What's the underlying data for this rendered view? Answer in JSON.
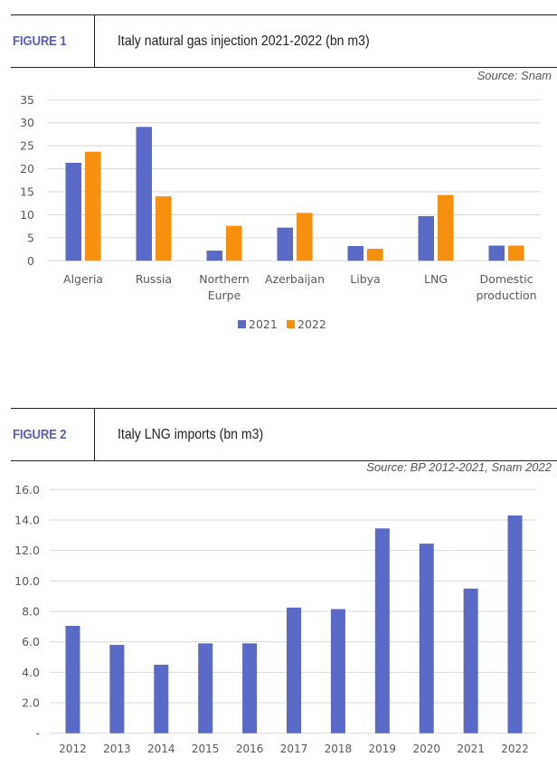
{
  "figures": [
    {
      "label": "FIGURE 1",
      "title": "Italy natural gas injection 2021-2022 (bn m3)",
      "source": "Source: Snam"
    },
    {
      "label": "FIGURE 2",
      "title": "Italy LNG imports (bn m3)",
      "source": "Source: BP 2012-2021, Snam 2022"
    }
  ],
  "chart_data": [
    {
      "type": "bar",
      "title": "Italy natural gas injection 2021-2022 (bn m3)",
      "xlabel": "",
      "ylabel": "",
      "categories": [
        "Algeria",
        "Russia",
        "Northern Eurpe",
        "Azerbaijan",
        "Libya",
        "LNG",
        "Domestic production"
      ],
      "category_lines": [
        [
          "Algeria"
        ],
        [
          "Russia"
        ],
        [
          "Northern",
          "Eurpe"
        ],
        [
          "Azerbaijan"
        ],
        [
          "Libya"
        ],
        [
          "LNG"
        ],
        [
          "Domestic",
          "production"
        ]
      ],
      "series": [
        {
          "name": "2021",
          "color": "#5B6AC6",
          "values": [
            21.3,
            29.1,
            2.2,
            7.2,
            3.2,
            9.7,
            3.3
          ]
        },
        {
          "name": "2022",
          "color": "#F7900E",
          "values": [
            23.7,
            14.0,
            7.6,
            10.4,
            2.6,
            14.3,
            3.3
          ]
        }
      ],
      "ylim": [
        0,
        35
      ],
      "yticks": [
        0,
        5,
        10,
        15,
        20,
        25,
        30,
        35
      ],
      "ytick_labels": [
        "0",
        "5",
        "10",
        "15",
        "20",
        "25",
        "30",
        "35"
      ],
      "grid": true,
      "legend": "bottom"
    },
    {
      "type": "bar",
      "title": "Italy LNG imports (bn m3)",
      "xlabel": "",
      "ylabel": "",
      "categories": [
        "2012",
        "2013",
        "2014",
        "2015",
        "2016",
        "2017",
        "2018",
        "2019",
        "2020",
        "2021",
        "2022"
      ],
      "series": [
        {
          "name": "LNG imports",
          "color": "#5B6AC6",
          "values": [
            7.05,
            5.8,
            4.5,
            5.9,
            5.9,
            8.25,
            8.15,
            13.45,
            12.45,
            9.5,
            14.3
          ]
        }
      ],
      "ylim": [
        0,
        16
      ],
      "yticks": [
        0,
        2,
        4,
        6,
        8,
        10,
        12,
        14,
        16
      ],
      "ytick_labels": [
        "-",
        "2.0",
        "4.0",
        "6.0",
        "8.0",
        "10.0",
        "12.0",
        "14.0",
        "16.0"
      ],
      "grid": true,
      "legend": "none"
    }
  ]
}
